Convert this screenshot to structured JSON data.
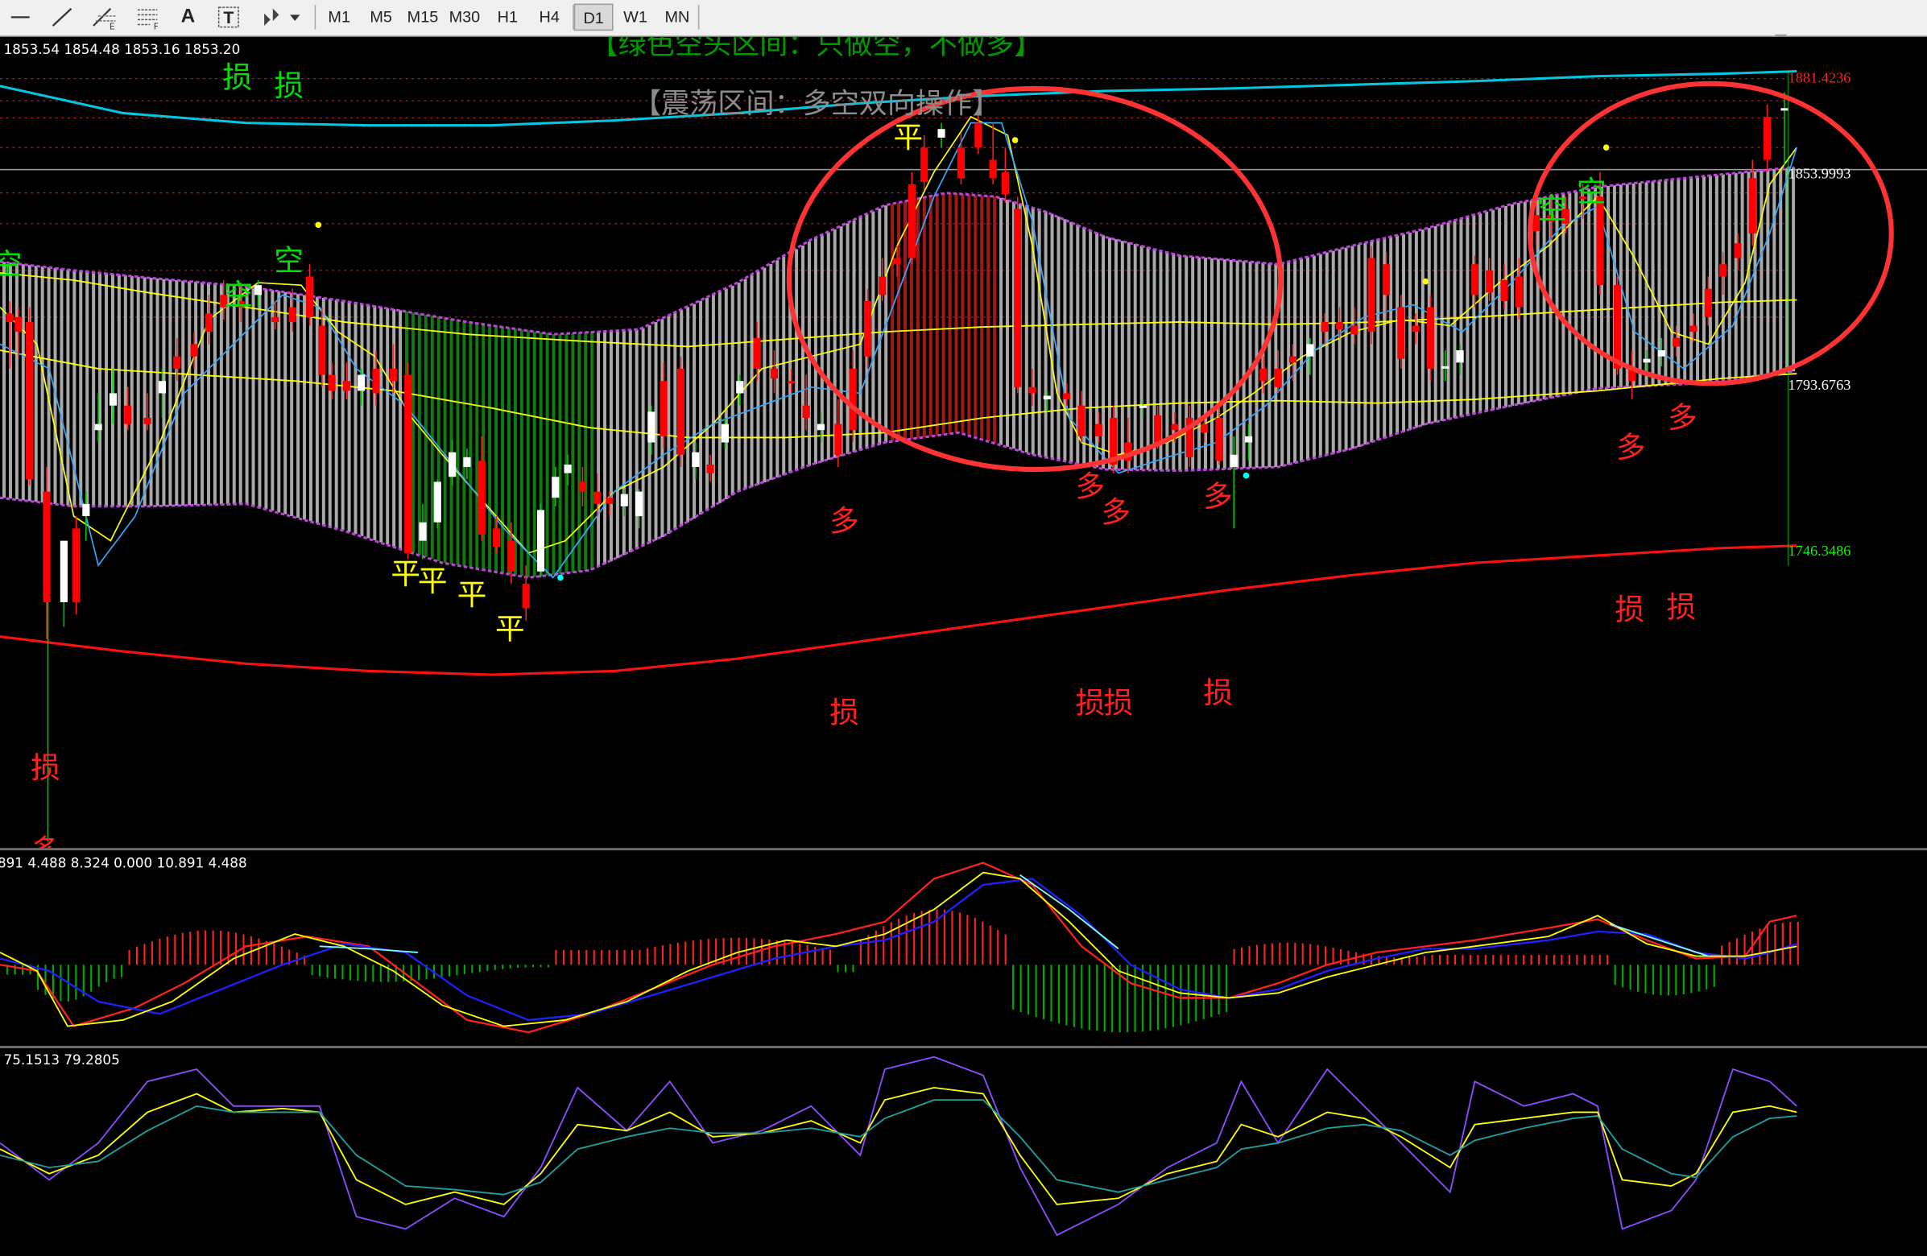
{
  "toolbar": {
    "tools": [
      "line-tool",
      "trendline-tool",
      "fibonacci-tool",
      "channel-tool",
      "text-tool",
      "text-label-tool",
      "arrow-shapes-tool"
    ],
    "text_tool_glyph": "A",
    "label_tool_glyph": "T",
    "timeframes": [
      "M1",
      "M5",
      "M15",
      "M30",
      "H1",
      "H4",
      "D1",
      "W1",
      "MN"
    ],
    "active_timeframe": "D1"
  },
  "main_pane": {
    "ohlc_readout": "1853.54 1854.48 1853.16 1853.20",
    "banner_top": "【绿色空头区间：只做空，不做多】",
    "banner_mid": "【震荡区间：多空双向操作】",
    "price_labels": [
      {
        "text": "1881.4236",
        "color": "#ff2020"
      },
      {
        "text": "1853.9993",
        "color": "#ffffff"
      },
      {
        "text": "1793.6763",
        "color": "#ffffff"
      },
      {
        "text": "1746.3486",
        "color": "#00ff00"
      }
    ],
    "signals": [
      {
        "text": "空",
        "color": "#00e000"
      },
      {
        "text": "损",
        "color": "#00e000"
      },
      {
        "text": "损",
        "color": "#00e000"
      },
      {
        "text": "空",
        "color": "#00e000"
      },
      {
        "text": "空",
        "color": "#00e000"
      },
      {
        "text": "空",
        "color": "#00e000"
      },
      {
        "text": "空",
        "color": "#00e000"
      },
      {
        "text": "平",
        "color": "#ffff00"
      },
      {
        "text": "平",
        "color": "#ffff00"
      },
      {
        "text": "平",
        "color": "#ffff00"
      },
      {
        "text": "平",
        "color": "#ffff00"
      },
      {
        "text": "平",
        "color": "#ffff00"
      },
      {
        "text": "多",
        "color": "#ff2020"
      },
      {
        "text": "多",
        "color": "#ff2020"
      },
      {
        "text": "多",
        "color": "#ff2020"
      },
      {
        "text": "多",
        "color": "#ff2020"
      },
      {
        "text": "多",
        "color": "#ff2020"
      },
      {
        "text": "多",
        "color": "#ff2020"
      },
      {
        "text": "多",
        "color": "#ff2020"
      },
      {
        "text": "损",
        "color": "#ff2020"
      },
      {
        "text": "损",
        "color": "#ff2020"
      },
      {
        "text": "损",
        "color": "#ff2020"
      },
      {
        "text": "损",
        "color": "#ff2020"
      },
      {
        "text": "损",
        "color": "#ff2020"
      },
      {
        "text": "损",
        "color": "#ff2020"
      },
      {
        "text": "损",
        "color": "#ff2020"
      }
    ]
  },
  "macd_pane": {
    "readout": "891 4.488 8.324 0.000 10.891 4.488"
  },
  "kdj_pane": {
    "readout": "75.1513 79.2805"
  },
  "colors": {
    "bull_candle": "#ffffff",
    "bear_candle": "#ff0000",
    "upper_band": "#00c8e0",
    "lower_band": "#ff1010",
    "envelope": "#c040e0",
    "ma_yellow": "#ffff00",
    "ma_cyan": "#33aaff",
    "highlight_circle": "#ff3333",
    "macd_up": "#ff2020",
    "macd_down": "#00aa00"
  }
}
